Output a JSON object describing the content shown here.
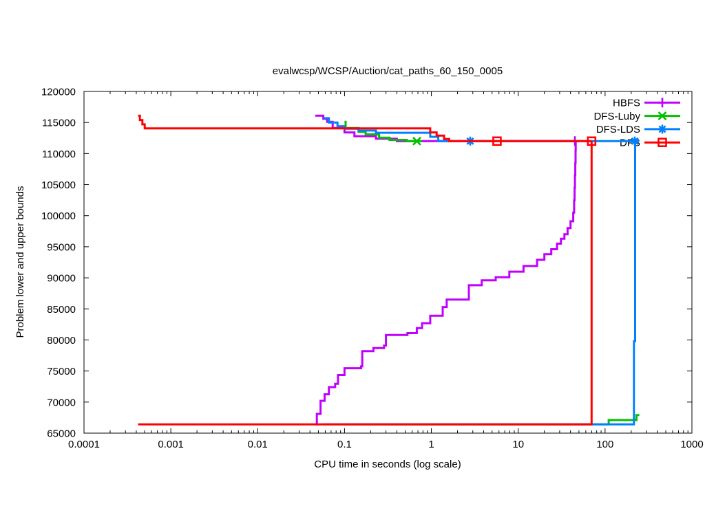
{
  "chart_data": {
    "type": "line",
    "title": "evalwcsp/WCSP/Auction/cat_paths_60_150_0005",
    "xlabel": "CPU time in seconds (log scale)",
    "ylabel": "Problem lower and upper bounds",
    "x_scale": "log",
    "xlim": [
      0.0001,
      1000
    ],
    "ylim": [
      65000,
      120000
    ],
    "x_ticks": [
      [
        0.0001,
        "0.0001"
      ],
      [
        0.001,
        "0.001"
      ],
      [
        0.01,
        "0.01"
      ],
      [
        0.1,
        "0.1"
      ],
      [
        1,
        "1"
      ],
      [
        10,
        "10"
      ],
      [
        100,
        "100"
      ],
      [
        1000,
        "1000"
      ]
    ],
    "y_ticks": [
      [
        65000,
        "65000"
      ],
      [
        70000,
        "70000"
      ],
      [
        75000,
        "75000"
      ],
      [
        80000,
        "80000"
      ],
      [
        85000,
        "85000"
      ],
      [
        90000,
        "90000"
      ],
      [
        95000,
        "95000"
      ],
      [
        100000,
        "100000"
      ],
      [
        105000,
        "105000"
      ],
      [
        110000,
        "110000"
      ],
      [
        115000,
        "115000"
      ],
      [
        120000,
        "120000"
      ]
    ],
    "optimum": 112000,
    "grid": false,
    "legend_position": "top-right",
    "axis_color": "#000000",
    "background": "#ffffff",
    "series": [
      {
        "name": "HBFS",
        "color": "#c000ff",
        "marker": "plus",
        "upper": [
          [
            0.046,
            116100
          ],
          [
            0.057,
            115600
          ],
          [
            0.063,
            115100
          ],
          [
            0.073,
            114100
          ],
          [
            0.1,
            113400
          ],
          [
            0.13,
            112800
          ],
          [
            0.23,
            112400
          ],
          [
            0.4,
            112000
          ],
          [
            45,
            112000
          ]
        ],
        "lower": [
          [
            0.047,
            66400
          ],
          [
            0.048,
            68100
          ],
          [
            0.053,
            70200
          ],
          [
            0.059,
            71250
          ],
          [
            0.066,
            72400
          ],
          [
            0.078,
            72950
          ],
          [
            0.084,
            74350
          ],
          [
            0.1,
            75450
          ],
          [
            0.155,
            75750
          ],
          [
            0.16,
            78200
          ],
          [
            0.215,
            78700
          ],
          [
            0.285,
            79100
          ],
          [
            0.3,
            80800
          ],
          [
            0.53,
            81100
          ],
          [
            0.68,
            81900
          ],
          [
            0.78,
            82700
          ],
          [
            0.97,
            83900
          ],
          [
            1.35,
            85300
          ],
          [
            1.5,
            86500
          ],
          [
            2.7,
            88800
          ],
          [
            3.8,
            89600
          ],
          [
            5.5,
            90100
          ],
          [
            7.9,
            91000
          ],
          [
            11.5,
            91900
          ],
          [
            16.5,
            92900
          ],
          [
            20,
            93800
          ],
          [
            24,
            94600
          ],
          [
            28,
            95500
          ],
          [
            31,
            96300
          ],
          [
            34,
            97000
          ],
          [
            37,
            98000
          ],
          [
            40,
            99100
          ],
          [
            43,
            100500
          ],
          [
            44,
            102500
          ],
          [
            44.6,
            104500
          ],
          [
            45,
            106500
          ],
          [
            45.4,
            108500
          ],
          [
            45.7,
            110500
          ],
          [
            45.9,
            112000
          ]
        ],
        "marker_points": [
          [
            45,
            112000
          ]
        ]
      },
      {
        "name": "DFS-Luby",
        "color": "#00c000",
        "marker": "cross",
        "upper": [
          [
            0.1,
            115100
          ],
          [
            0.103,
            114100
          ],
          [
            0.145,
            113500
          ],
          [
            0.175,
            113100
          ],
          [
            0.25,
            112550
          ],
          [
            0.33,
            112200
          ],
          [
            0.52,
            112000
          ],
          [
            0.78,
            112000
          ]
        ],
        "lower": [
          [
            0.1,
            66400
          ],
          [
            110,
            67100
          ],
          [
            230,
            67900
          ],
          [
            248,
            67900
          ]
        ],
        "marker_points": [
          [
            0.68,
            112000
          ]
        ]
      },
      {
        "name": "DFS-LDS",
        "color": "#0080ff",
        "marker": "star",
        "upper": [
          [
            0.057,
            115700
          ],
          [
            0.066,
            115000
          ],
          [
            0.083,
            114400
          ],
          [
            0.1,
            114000
          ],
          [
            0.145,
            113700
          ],
          [
            0.23,
            113350
          ],
          [
            0.97,
            112700
          ],
          [
            1.2,
            112000
          ],
          [
            220,
            112000
          ]
        ],
        "lower": [
          [
            0.057,
            66400
          ],
          [
            215,
            79800
          ],
          [
            222,
            112000
          ]
        ],
        "marker_points": [
          [
            2.8,
            112000
          ],
          [
            220,
            112000
          ]
        ]
      },
      {
        "name": "DFS",
        "color": "#ff0000",
        "marker": "square",
        "upper": [
          [
            0.00042,
            116100
          ],
          [
            0.00044,
            115400
          ],
          [
            0.00047,
            114700
          ],
          [
            0.0005,
            114050
          ],
          [
            0.97,
            113400
          ],
          [
            1.15,
            112900
          ],
          [
            1.4,
            112350
          ],
          [
            1.6,
            112000
          ],
          [
            70,
            112000
          ]
        ],
        "lower": [
          [
            0.00042,
            66400
          ],
          [
            70,
            66400
          ],
          [
            70,
            112000
          ]
        ],
        "marker_points": [
          [
            5.7,
            112000
          ],
          [
            70,
            112000
          ]
        ]
      }
    ]
  }
}
